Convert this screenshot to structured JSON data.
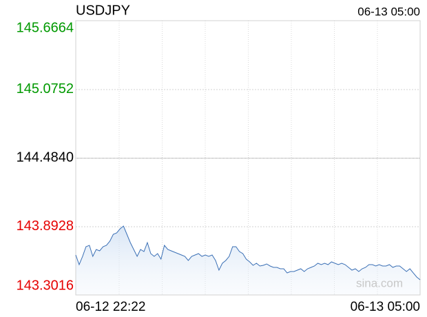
{
  "chart_data": {
    "type": "line",
    "title": "USDJPY",
    "updated": "06-13 05:00",
    "watermark": "sina.com",
    "categories": [
      "06-12 22:22",
      null,
      null,
      null,
      null,
      null,
      null,
      null,
      null,
      null,
      null,
      null,
      null,
      null,
      null,
      null,
      null,
      null,
      null,
      null,
      null,
      null,
      null,
      null,
      null,
      null,
      null,
      null,
      null,
      null,
      null,
      null,
      null,
      null,
      null,
      null,
      null,
      null,
      null,
      null,
      null,
      null,
      null,
      null,
      null,
      null,
      null,
      null,
      null,
      null,
      null,
      null,
      null,
      null,
      null,
      null,
      null,
      null,
      null,
      null,
      null,
      null,
      null,
      null,
      null,
      null,
      null,
      null,
      null,
      null,
      null,
      null,
      null,
      null,
      null,
      null,
      null,
      null,
      null,
      null,
      null,
      null,
      null,
      null,
      null,
      null,
      null,
      null,
      null,
      null,
      null,
      null,
      null,
      null,
      null,
      null,
      null,
      null,
      null,
      null,
      null,
      "06-13 05:00"
    ],
    "series": [
      {
        "name": "USDJPY",
        "color": "#3a6fb5",
        "values": [
          143.6462,
          143.563,
          143.6343,
          143.7175,
          143.7294,
          143.6343,
          143.6938,
          143.6819,
          143.7175,
          143.7294,
          143.7651,
          143.8245,
          143.8364,
          143.872,
          143.8958,
          143.8245,
          143.7532,
          143.6938,
          143.6343,
          143.6938,
          143.6759,
          143.7532,
          143.6581,
          143.6343,
          143.6581,
          143.6106,
          143.7294,
          143.6938,
          143.6819,
          143.67,
          143.6581,
          143.6462,
          143.6343,
          143.5987,
          143.6343,
          143.6462,
          143.6581,
          143.6343,
          143.6462,
          143.6343,
          143.6462,
          143.5987,
          143.5155,
          143.5749,
          143.5987,
          143.6343,
          143.7175,
          143.7175,
          143.6759,
          143.6581,
          143.6106,
          143.5868,
          143.5571,
          143.5749,
          143.5512,
          143.5571,
          143.569,
          143.5512,
          143.5393,
          143.5393,
          143.5274,
          143.5274,
          143.4917,
          143.5036,
          143.5036,
          143.5155,
          143.5274,
          143.5036,
          143.5274,
          143.5393,
          143.5512,
          143.5749,
          143.563,
          143.5749,
          143.563,
          143.5868,
          143.5749,
          143.563,
          143.5749,
          143.563,
          143.5393,
          143.5155,
          143.5274,
          143.5036,
          143.5274,
          143.5393,
          143.563,
          143.563,
          143.5512,
          143.563,
          143.5512,
          143.5512,
          143.563,
          143.5393,
          143.5512,
          143.5512,
          143.5274,
          143.5036,
          143.5274,
          143.4917,
          143.4561,
          143.4323
        ]
      }
    ],
    "ylim": [
      143.3016,
      145.6664
    ],
    "yticks": [
      145.6664,
      145.0752,
      {
        "value": 144.484,
        "label": "144.4840"
      },
      143.8928,
      143.3016
    ],
    "up_color": "#009900",
    "down_color": "#e60000",
    "flat_color": "#000000",
    "grid": true
  }
}
